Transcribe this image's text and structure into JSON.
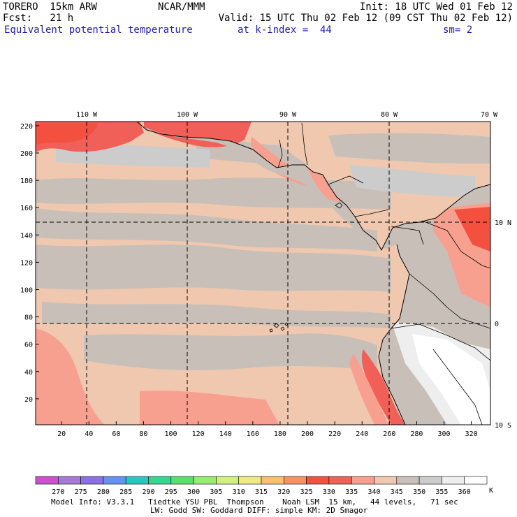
{
  "header": {
    "model": "TORERO  15km ARW",
    "center": "NCAR/MMM",
    "init": "Init: 18 UTC Wed 01 Feb 12",
    "fcst_label": "Fcst:   21 h",
    "valid": "Valid: 15 UTC Thu 02 Feb 12 (09 CST Thu 02 Feb 12)",
    "field": "Equivalent potential temperature",
    "level": "at k-index =  44",
    "smooth": "sm= 2"
  },
  "map": {
    "top_lon_labels": [
      "110 W",
      "100 W",
      "90 W",
      "80 W",
      "70 W"
    ],
    "right_lat_labels": [
      "10 N",
      "0",
      "10 S"
    ],
    "left_y_ticks": [
      "20",
      "40",
      "60",
      "80",
      "100",
      "120",
      "140",
      "160",
      "180",
      "200",
      "220"
    ],
    "bottom_x_ticks": [
      "20",
      "40",
      "60",
      "80",
      "100",
      "120",
      "140",
      "160",
      "180",
      "200",
      "220",
      "240",
      "260",
      "280",
      "300",
      "320"
    ]
  },
  "colorbar": {
    "unit": "K",
    "labels": [
      "270",
      "275",
      "280",
      "285",
      "290",
      "295",
      "300",
      "305",
      "310",
      "315",
      "320",
      "325",
      "330",
      "335",
      "340",
      "345",
      "350",
      "355",
      "360"
    ],
    "colors": [
      "#cc50cc",
      "#a878d8",
      "#8a70e8",
      "#6890f0",
      "#28c8c0",
      "#30d890",
      "#58e070",
      "#98ec70",
      "#d0f080",
      "#f0e880",
      "#f8c070",
      "#f89060",
      "#f45040",
      "#f06058",
      "#f8a090",
      "#f0c8b0",
      "#c8c0b8",
      "#cccccc",
      "#eeeeee",
      "#ffffff"
    ]
  },
  "footer": {
    "line1": "Model Info: V3.3.1   Tiedtke YSU PBL  Thompson    Noah LSM  15 km,   44 levels,   71 sec",
    "line2": "LW: Godd SW: Goddard DIFF: simple KM: 2D Smagor"
  }
}
